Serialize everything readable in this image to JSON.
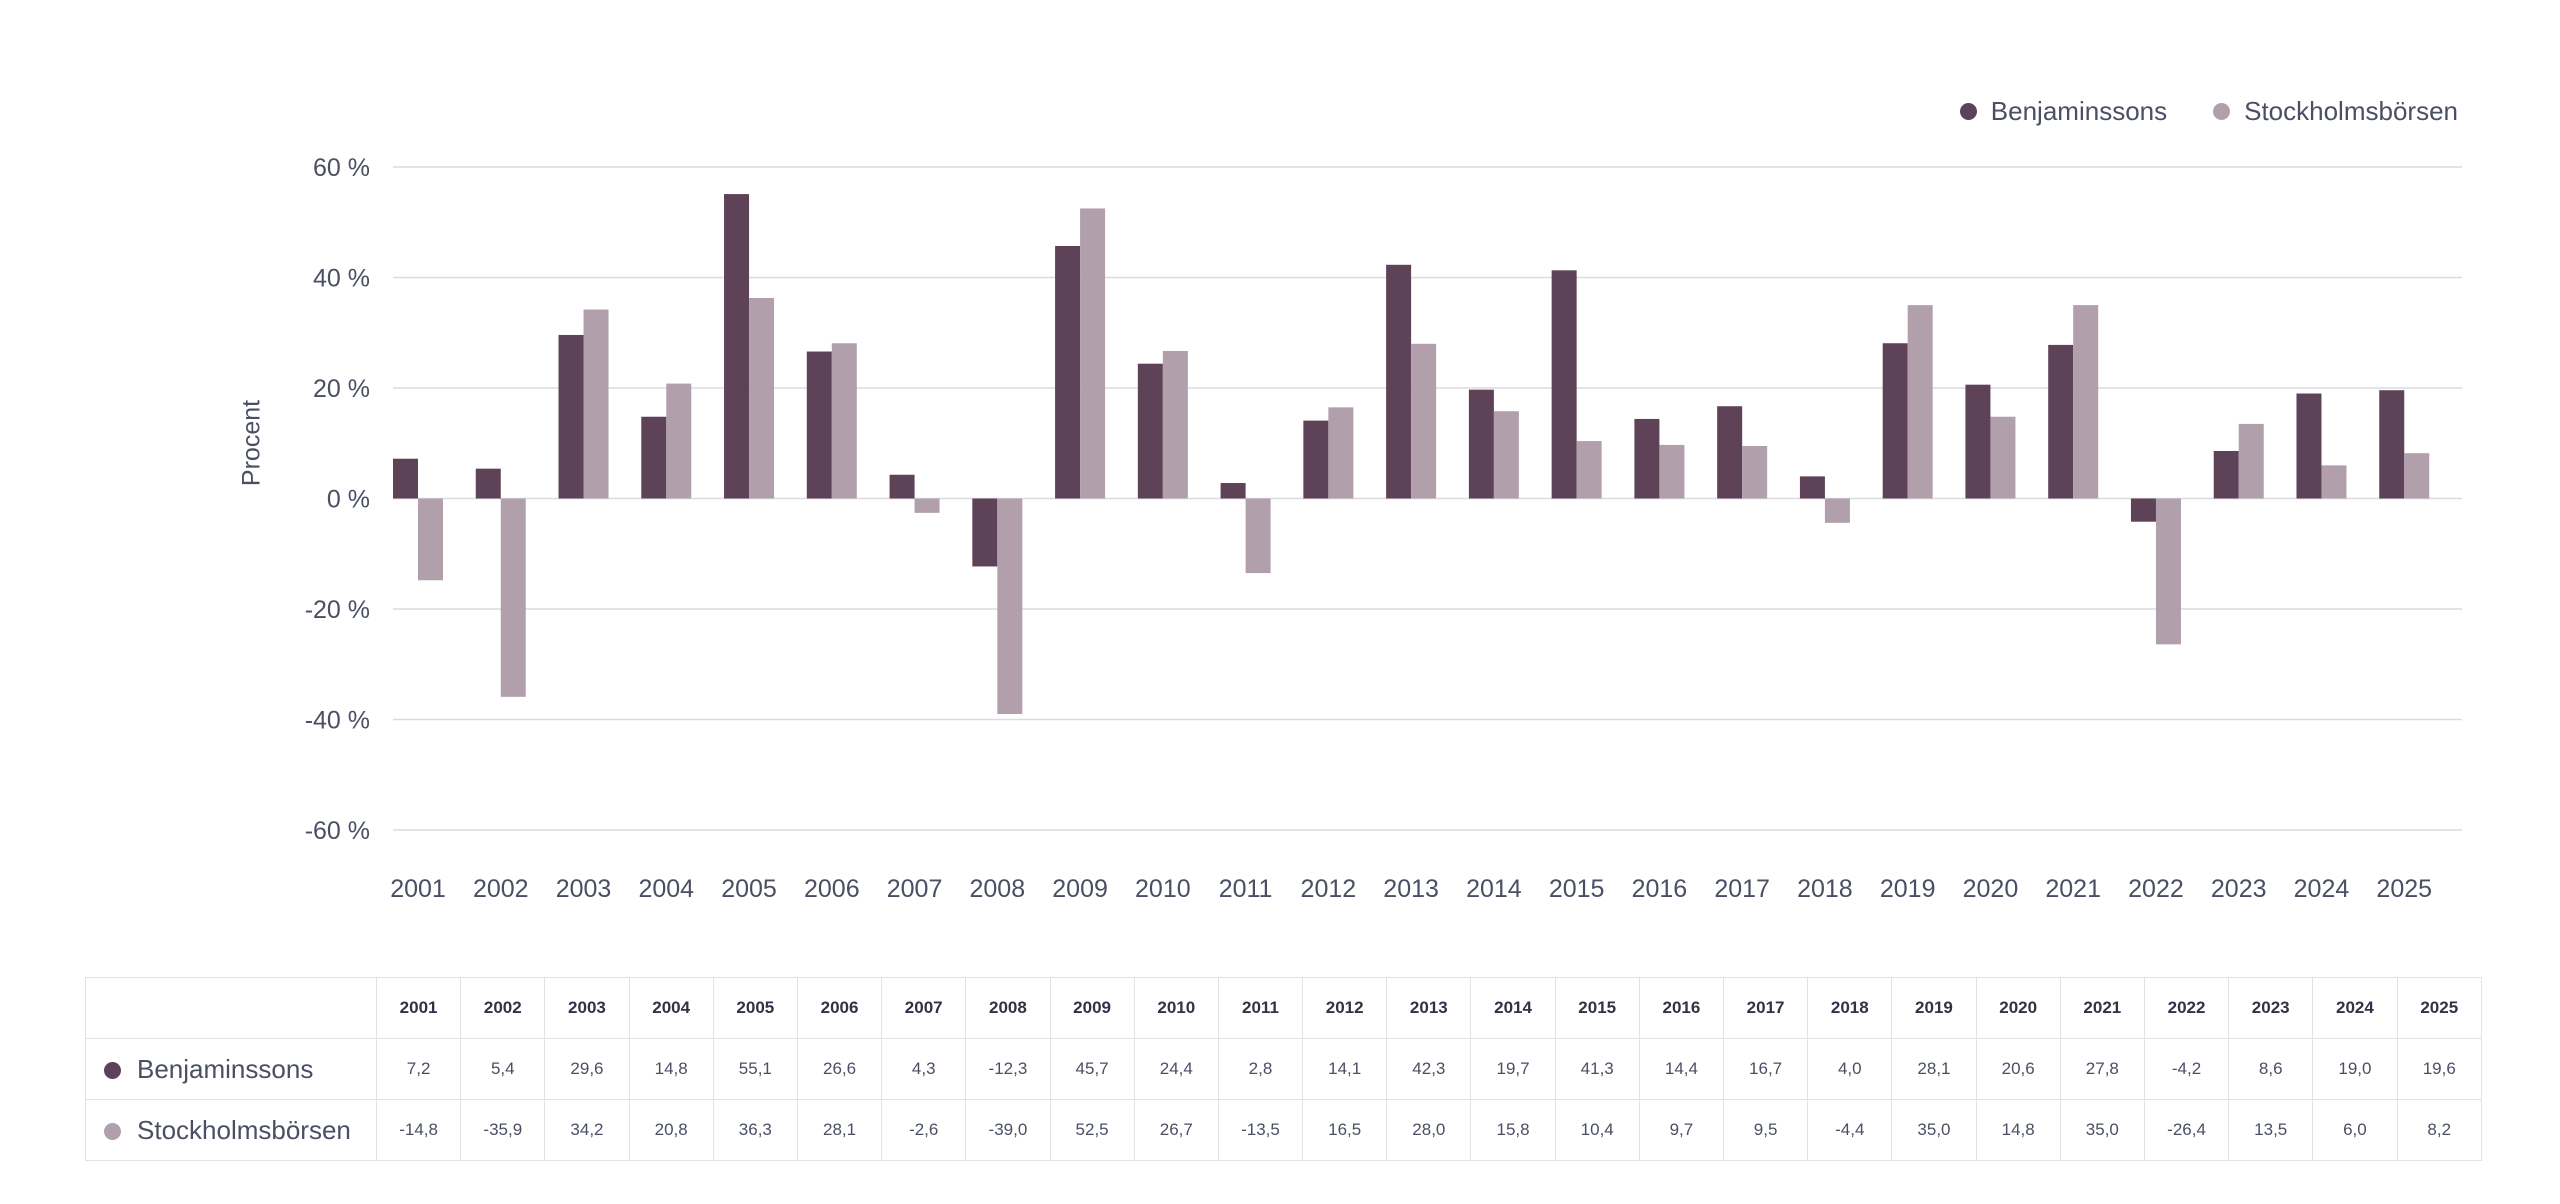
{
  "chart_data": {
    "type": "bar",
    "ylabel": "Procent",
    "xlabel": "",
    "ylim": [
      -60,
      60
    ],
    "yticks": [
      60,
      40,
      20,
      0,
      -20,
      -40,
      -60
    ],
    "ytick_labels": [
      "60 %",
      "40 %",
      "20 %",
      "0 %",
      "-20 %",
      "-40 %",
      "-60 %"
    ],
    "grid": true,
    "legend_position": "top-right",
    "categories": [
      "2001",
      "2002",
      "2003",
      "2004",
      "2005",
      "2006",
      "2007",
      "2008",
      "2009",
      "2010",
      "2011",
      "2012",
      "2013",
      "2014",
      "2015",
      "2016",
      "2017",
      "2018",
      "2019",
      "2020",
      "2021",
      "2022",
      "2023",
      "2024",
      "2025"
    ],
    "series": [
      {
        "name": "Benjaminssons",
        "color": "#5e4257",
        "values": [
          7.2,
          5.4,
          29.6,
          14.8,
          55.1,
          26.6,
          4.3,
          -12.3,
          45.7,
          24.4,
          2.8,
          14.1,
          42.3,
          19.7,
          41.3,
          14.4,
          16.7,
          4.0,
          28.1,
          20.6,
          27.8,
          -4.2,
          8.6,
          19.0,
          19.6
        ],
        "labels": [
          "7,2",
          "5,4",
          "29,6",
          "14,8",
          "55,1",
          "26,6",
          "4,3",
          "-12,3",
          "45,7",
          "24,4",
          "2,8",
          "14,1",
          "42,3",
          "19,7",
          "41,3",
          "14,4",
          "16,7",
          "4,0",
          "28,1",
          "20,6",
          "27,8",
          "-4,2",
          "8,6",
          "19,0",
          "19,6"
        ]
      },
      {
        "name": "Stockholmsbörsen",
        "color": "#b1a0ab",
        "values": [
          -14.8,
          -35.9,
          34.2,
          20.8,
          36.3,
          28.1,
          -2.6,
          -39.0,
          52.5,
          26.7,
          -13.5,
          16.5,
          28.0,
          15.8,
          10.4,
          9.7,
          9.5,
          -4.4,
          35.0,
          14.8,
          35.0,
          -26.4,
          13.5,
          6.0,
          8.2
        ],
        "labels": [
          "-14,8",
          "-35,9",
          "34,2",
          "20,8",
          "36,3",
          "28,1",
          "-2,6",
          "-39,0",
          "52,5",
          "26,7",
          "-13,5",
          "16,5",
          "28,0",
          "15,8",
          "10,4",
          "9,7",
          "9,5",
          "-4,4",
          "35,0",
          "14,8",
          "35,0",
          "-26,4",
          "13,5",
          "6,0",
          "8,2"
        ]
      }
    ]
  }
}
